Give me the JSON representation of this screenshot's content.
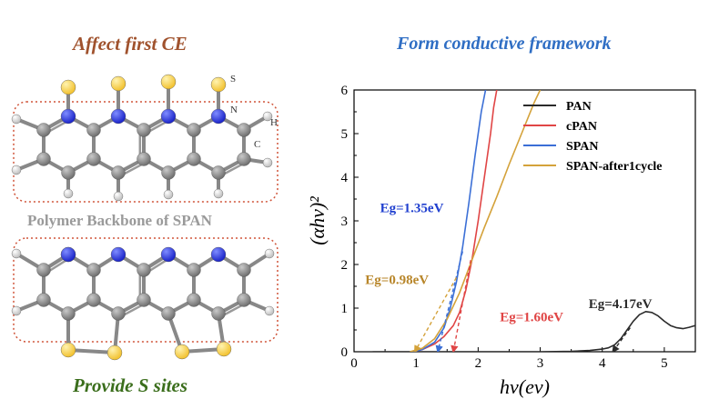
{
  "figure": {
    "heading_left": "Affect first CE",
    "heading_right": "Form conductive framework",
    "heading_bottom": "Provide S sites",
    "backbone_label": "Polymer Backbone of SPAN",
    "atom_labels": {
      "s": "S",
      "n": "N",
      "h": "H",
      "c": "C"
    }
  },
  "colors": {
    "heading_left": "#a0522d",
    "heading_right": "#2f6ec4",
    "heading_bottom": "#3b6e1c",
    "backbone_label": "#9a9a9a",
    "sulfur": "#f2c12e",
    "nitrogen": "#1a23c8",
    "carbon": "#6f6f6f",
    "hydrogen": "#e2e2e2",
    "dotted_box": "#d0553a"
  },
  "chart_data": {
    "type": "line",
    "xlabel": "hν(ev)",
    "ylabel": "(αhν)²",
    "xlim": [
      0,
      5.5
    ],
    "ylim": [
      0,
      6
    ],
    "xticks": [
      "0",
      "1",
      "2",
      "3",
      "4",
      "5"
    ],
    "yticks": [
      "0",
      "1",
      "2",
      "3",
      "4",
      "5",
      "6"
    ],
    "grid": false,
    "legend_position": "top-right",
    "series": [
      {
        "name": "PAN",
        "color": "#2b2b2b",
        "x": [
          0.3,
          1.0,
          2.0,
          3.0,
          3.5,
          3.8,
          4.0,
          4.1,
          4.2,
          4.3,
          4.4,
          4.5,
          4.6,
          4.7,
          4.8,
          4.9,
          5.0,
          5.1,
          5.2,
          5.3,
          5.4,
          5.5
        ],
        "y": [
          0.0,
          0.0,
          0.0,
          0.0,
          0.01,
          0.03,
          0.06,
          0.09,
          0.16,
          0.3,
          0.5,
          0.7,
          0.85,
          0.92,
          0.9,
          0.82,
          0.7,
          0.6,
          0.55,
          0.53,
          0.56,
          0.6
        ]
      },
      {
        "name": "cPAN",
        "color": "#e04545",
        "x": [
          0.95,
          1.1,
          1.3,
          1.45,
          1.6,
          1.7,
          1.8,
          1.9,
          2.0,
          2.1,
          2.2,
          2.25,
          2.3
        ],
        "y": [
          0.0,
          0.05,
          0.18,
          0.35,
          0.6,
          0.9,
          1.4,
          2.1,
          3.0,
          4.0,
          5.0,
          5.6,
          6.0
        ]
      },
      {
        "name": "SPAN",
        "color": "#3b6fd6",
        "x": [
          0.95,
          1.1,
          1.3,
          1.45,
          1.55,
          1.65,
          1.75,
          1.85,
          1.95,
          2.05,
          2.12
        ],
        "y": [
          0.0,
          0.05,
          0.22,
          0.55,
          1.0,
          1.6,
          2.4,
          3.4,
          4.5,
          5.5,
          6.0
        ]
      },
      {
        "name": "SPAN-after1cycle",
        "color": "#d4a23a",
        "x": [
          0.9,
          1.1,
          1.3,
          1.5,
          1.7,
          1.9,
          2.1,
          2.3,
          2.5,
          2.7,
          2.9,
          3.0
        ],
        "y": [
          0.0,
          0.08,
          0.3,
          0.75,
          1.35,
          2.1,
          2.85,
          3.55,
          4.3,
          5.0,
          5.7,
          6.0
        ]
      }
    ],
    "tangents": [
      {
        "color": "#3b6fd6",
        "x": [
          1.35,
          1.75
        ],
        "y": [
          0.0,
          2.3
        ]
      },
      {
        "color": "#e04545",
        "x": [
          1.6,
          1.88
        ],
        "y": [
          0.0,
          2.1
        ]
      },
      {
        "color": "#d4a23a",
        "x": [
          0.98,
          1.65
        ],
        "y": [
          0.0,
          1.7
        ]
      },
      {
        "color": "#2b2b2b",
        "x": [
          4.17,
          4.45
        ],
        "y": [
          0.0,
          0.55
        ]
      }
    ],
    "annotations": [
      {
        "text": "Eg=1.35eV",
        "color": "#1f3fcf",
        "x": 0.42,
        "y": 3.2
      },
      {
        "text": "Eg=0.98eV",
        "color": "#b8862a",
        "x": 0.18,
        "y": 1.55
      },
      {
        "text": "Eg=1.60eV",
        "color": "#e04545",
        "x": 2.35,
        "y": 0.7
      },
      {
        "text": "Eg=4.17eV",
        "color": "#2b2b2b",
        "x": 3.78,
        "y": 1.0
      }
    ]
  }
}
